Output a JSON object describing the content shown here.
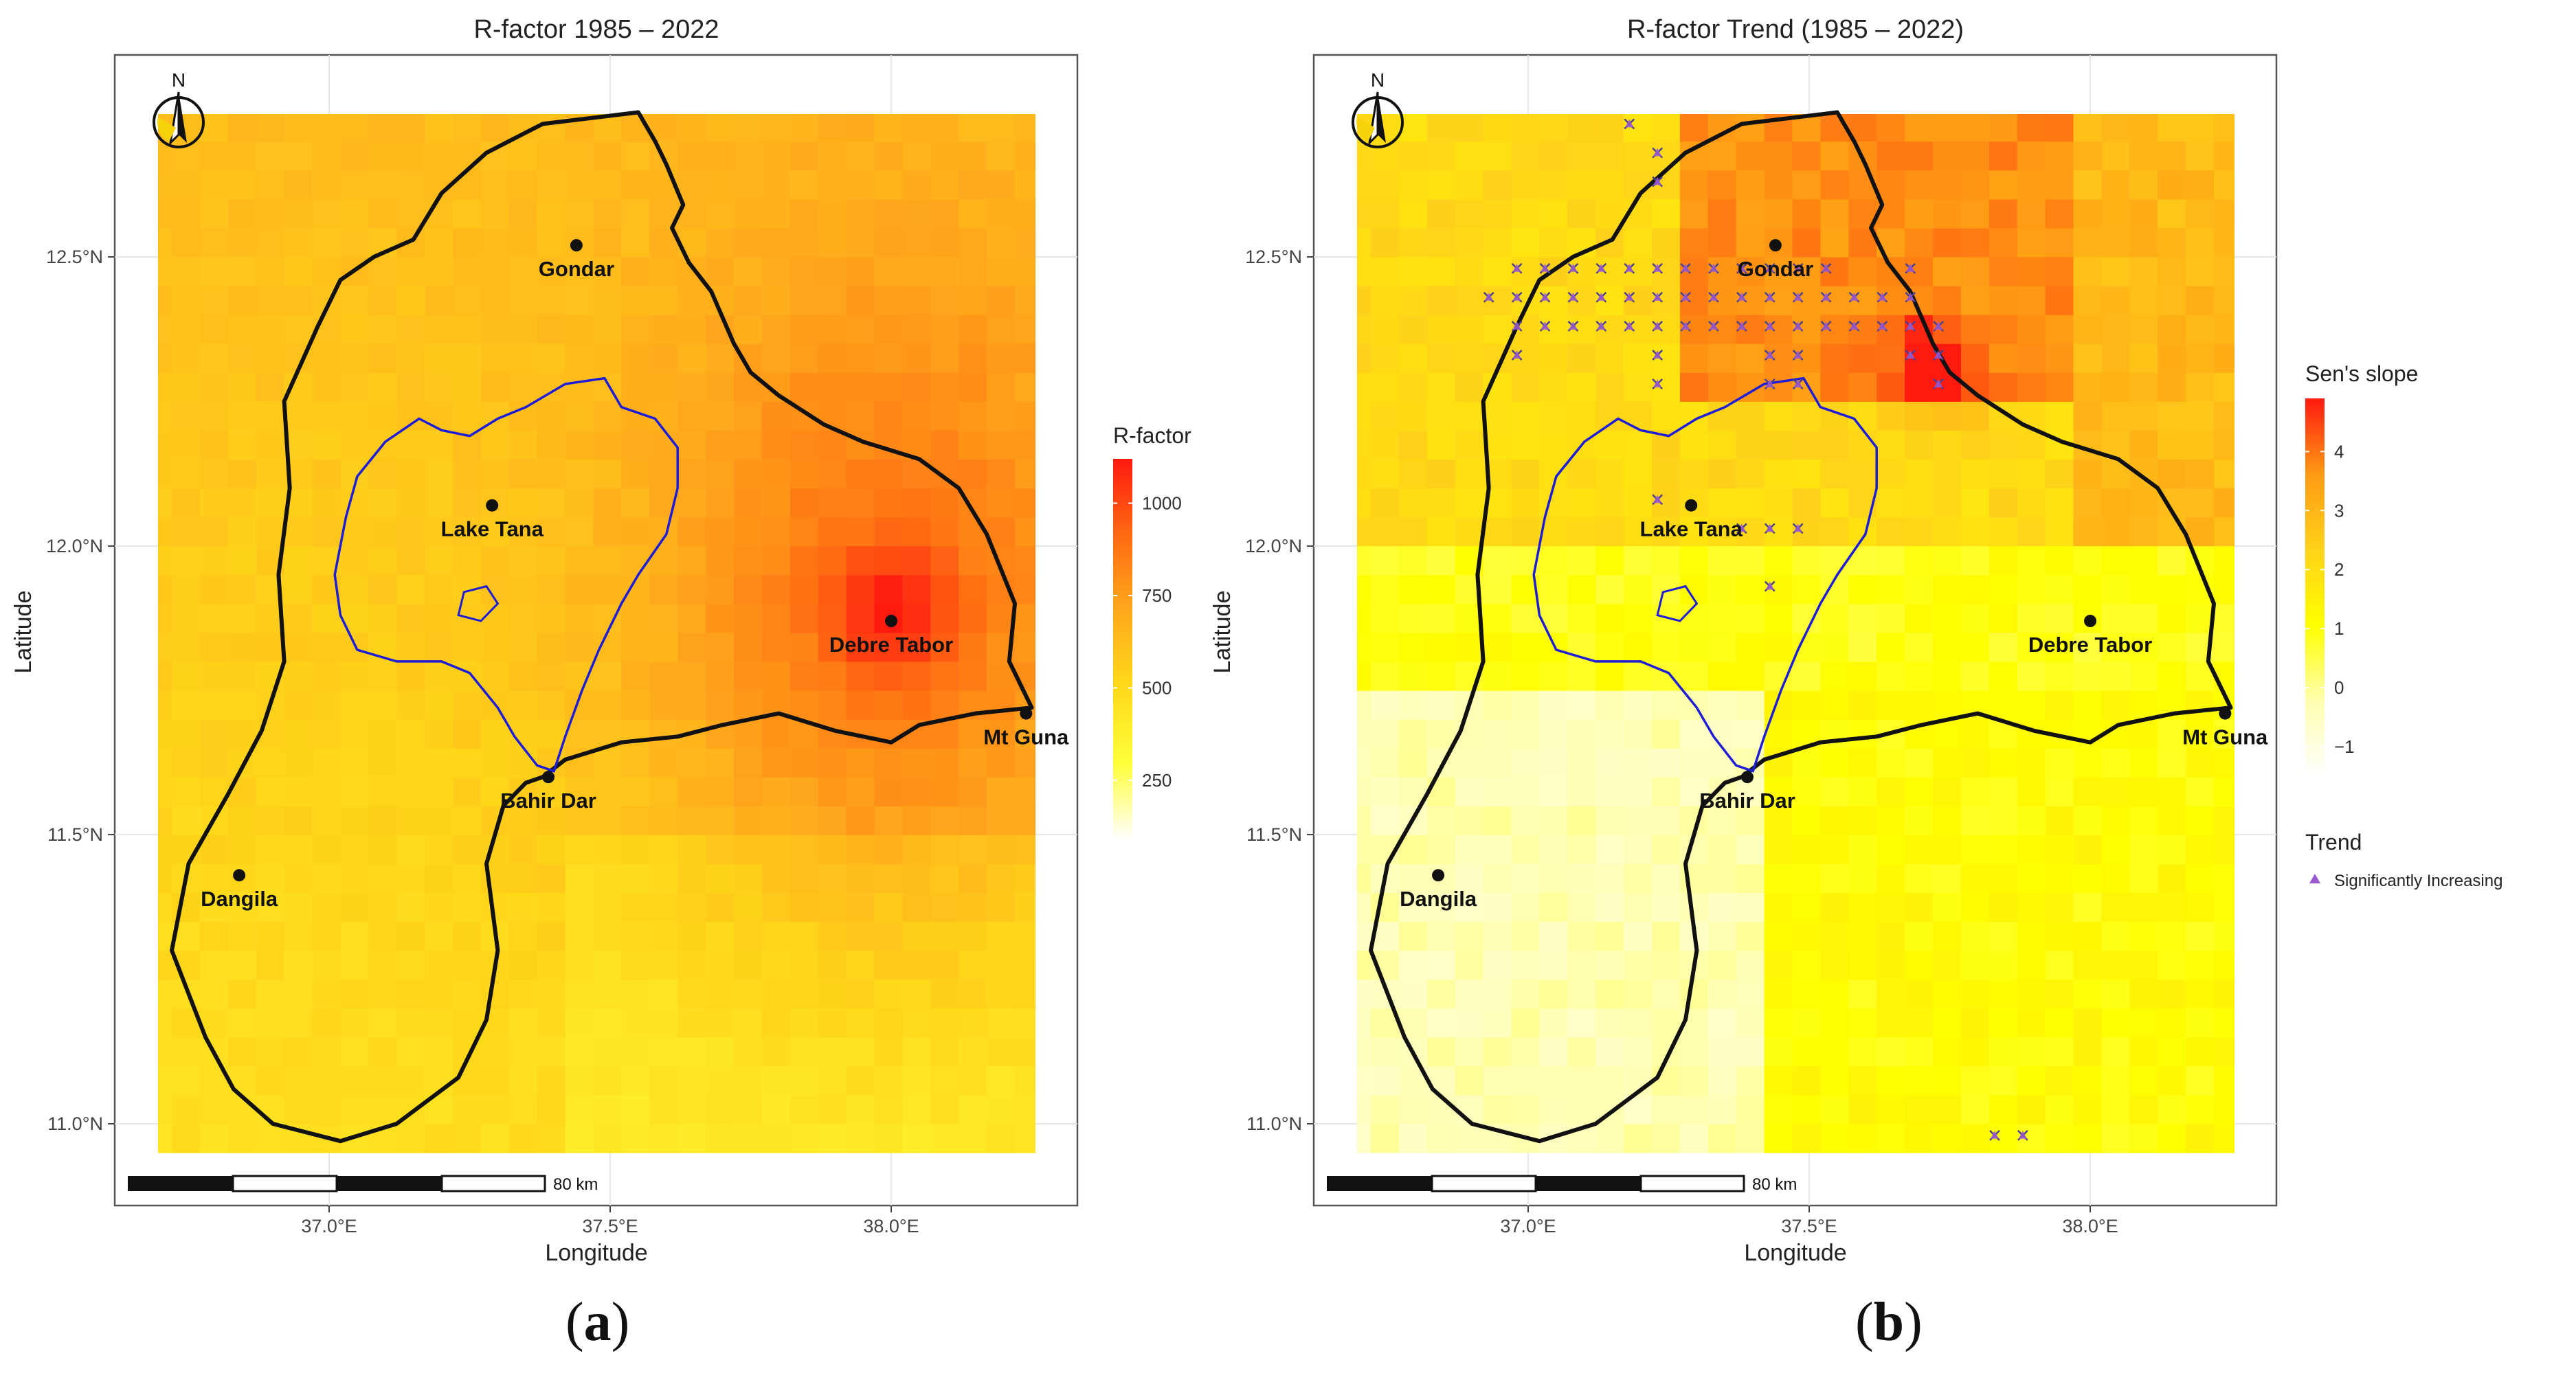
{
  "panels": [
    {
      "id": "a",
      "title": "R-factor 1985 – 2022",
      "panel_label": "a",
      "north_label": "N",
      "x_axis_title": "Longitude",
      "y_axis_title": "Latitude",
      "x_ticks": [
        "37.0°E",
        "37.5°E",
        "38.0°E"
      ],
      "y_ticks": [
        "11.0°N",
        "11.5°N",
        "12.0°N",
        "12.5°N"
      ],
      "scale_bar_label": "80 km",
      "places": [
        {
          "name": "Gondar",
          "lon": 37.44,
          "lat": 12.52
        },
        {
          "name": "Lake Tana",
          "lon": 37.29,
          "lat": 12.07
        },
        {
          "name": "Debre Tabor",
          "lon": 38.0,
          "lat": 11.87
        },
        {
          "name": "Mt Guna",
          "lon": 38.24,
          "lat": 11.71
        },
        {
          "name": "Bahir Dar",
          "lon": 37.39,
          "lat": 11.6
        },
        {
          "name": "Dangila",
          "lon": 36.84,
          "lat": 11.43
        }
      ],
      "legend": {
        "title": "R-factor",
        "ticks": [
          "250",
          "500",
          "750",
          "1000"
        ],
        "tick_values": [
          250,
          500,
          750,
          1000
        ],
        "range": [
          90,
          1120
        ],
        "colors": [
          "#ffffff",
          "#ffff3a",
          "#ffd91a",
          "#ffa91c",
          "#ff6a12",
          "#ff1a10"
        ]
      }
    },
    {
      "id": "b",
      "title": "R-factor Trend (1985 – 2022)",
      "panel_label": "b",
      "north_label": "N",
      "x_axis_title": "Longitude",
      "y_axis_title": "Latitude",
      "x_ticks": [
        "37.0°E",
        "37.5°E",
        "38.0°E"
      ],
      "y_ticks": [
        "11.0°N",
        "11.5°N",
        "12.0°N",
        "12.5°N"
      ],
      "scale_bar_label": "80 km",
      "places": [
        {
          "name": "Gondar",
          "lon": 37.44,
          "lat": 12.52
        },
        {
          "name": "Lake Tana",
          "lon": 37.29,
          "lat": 12.07
        },
        {
          "name": "Debre Tabor",
          "lon": 38.0,
          "lat": 11.87
        },
        {
          "name": "Mt Guna",
          "lon": 38.24,
          "lat": 11.71
        },
        {
          "name": "Bahir Dar",
          "lon": 37.39,
          "lat": 11.6
        },
        {
          "name": "Dangila",
          "lon": 36.84,
          "lat": 11.43
        }
      ],
      "legend": {
        "title": "Sen's slope",
        "ticks": [
          "−1",
          "0",
          "1",
          "2",
          "3",
          "4"
        ],
        "tick_values": [
          -1,
          0,
          1,
          2,
          3,
          4
        ],
        "range": [
          -1.5,
          4.9
        ],
        "colors": [
          "#ffffff",
          "#ffffb0",
          "#ffff00",
          "#ffd21a",
          "#ff9a14",
          "#ff1a10"
        ]
      },
      "trend_legend": {
        "title": "Trend",
        "item": "Significantly Increasing",
        "marker_color": "#9b59d0"
      }
    }
  ],
  "chart_data": {
    "type": "map",
    "lon_range": [
      36.67,
      38.25
    ],
    "lat_range": [
      10.95,
      12.75
    ],
    "basin_outline": [
      [
        37.55,
        12.75
      ],
      [
        37.58,
        12.7
      ],
      [
        37.6,
        12.66
      ],
      [
        37.63,
        12.59
      ],
      [
        37.61,
        12.55
      ],
      [
        37.64,
        12.49
      ],
      [
        37.68,
        12.44
      ],
      [
        37.72,
        12.35
      ],
      [
        37.75,
        12.3
      ],
      [
        37.8,
        12.26
      ],
      [
        37.88,
        12.21
      ],
      [
        37.95,
        12.18
      ],
      [
        38.05,
        12.15
      ],
      [
        38.12,
        12.1
      ],
      [
        38.17,
        12.02
      ],
      [
        38.22,
        11.9
      ],
      [
        38.21,
        11.8
      ],
      [
        38.25,
        11.72
      ],
      [
        38.15,
        11.71
      ],
      [
        38.05,
        11.69
      ],
      [
        38.0,
        11.66
      ],
      [
        37.9,
        11.68
      ],
      [
        37.8,
        11.71
      ],
      [
        37.7,
        11.69
      ],
      [
        37.62,
        11.67
      ],
      [
        37.52,
        11.66
      ],
      [
        37.42,
        11.63
      ],
      [
        37.38,
        11.6
      ],
      [
        37.35,
        11.59
      ],
      [
        37.31,
        11.55
      ],
      [
        37.28,
        11.45
      ],
      [
        37.3,
        11.3
      ],
      [
        37.28,
        11.18
      ],
      [
        37.23,
        11.08
      ],
      [
        37.12,
        11.0
      ],
      [
        37.02,
        10.97
      ],
      [
        36.9,
        11.0
      ],
      [
        36.83,
        11.06
      ],
      [
        36.78,
        11.15
      ],
      [
        36.72,
        11.3
      ],
      [
        36.75,
        11.45
      ],
      [
        36.82,
        11.57
      ],
      [
        36.88,
        11.68
      ],
      [
        36.92,
        11.8
      ],
      [
        36.91,
        11.95
      ],
      [
        36.93,
        12.1
      ],
      [
        36.92,
        12.25
      ],
      [
        36.98,
        12.38
      ],
      [
        37.02,
        12.46
      ],
      [
        37.08,
        12.5
      ],
      [
        37.15,
        12.53
      ],
      [
        37.2,
        12.61
      ],
      [
        37.28,
        12.68
      ],
      [
        37.38,
        12.73
      ],
      [
        37.55,
        12.75
      ]
    ],
    "lake_outline": [
      [
        37.49,
        12.29
      ],
      [
        37.52,
        12.24
      ],
      [
        37.58,
        12.22
      ],
      [
        37.62,
        12.17
      ],
      [
        37.62,
        12.1
      ],
      [
        37.6,
        12.02
      ],
      [
        37.55,
        11.95
      ],
      [
        37.52,
        11.9
      ],
      [
        37.48,
        11.82
      ],
      [
        37.45,
        11.75
      ],
      [
        37.42,
        11.67
      ],
      [
        37.4,
        11.61
      ],
      [
        37.37,
        11.62
      ],
      [
        37.33,
        11.67
      ],
      [
        37.3,
        11.72
      ],
      [
        37.25,
        11.78
      ],
      [
        37.2,
        11.8
      ],
      [
        37.12,
        11.8
      ],
      [
        37.05,
        11.82
      ],
      [
        37.02,
        11.88
      ],
      [
        37.01,
        11.95
      ],
      [
        37.03,
        12.05
      ],
      [
        37.05,
        12.12
      ],
      [
        37.1,
        12.18
      ],
      [
        37.16,
        12.22
      ],
      [
        37.2,
        12.2
      ],
      [
        37.25,
        12.19
      ],
      [
        37.3,
        12.22
      ],
      [
        37.35,
        12.24
      ],
      [
        37.42,
        12.28
      ],
      [
        37.49,
        12.29
      ]
    ],
    "island_outline": [
      [
        37.24,
        11.92
      ],
      [
        37.28,
        11.93
      ],
      [
        37.3,
        11.9
      ],
      [
        37.27,
        11.87
      ],
      [
        37.23,
        11.88
      ],
      [
        37.24,
        11.92
      ]
    ],
    "significant_cells": [
      [
        37.18,
        12.73
      ],
      [
        37.23,
        12.68
      ],
      [
        37.23,
        12.63
      ],
      [
        36.93,
        12.43
      ],
      [
        36.98,
        12.48
      ],
      [
        37.03,
        12.48
      ],
      [
        37.08,
        12.48
      ],
      [
        37.13,
        12.48
      ],
      [
        37.18,
        12.48
      ],
      [
        37.23,
        12.48
      ],
      [
        37.28,
        12.48
      ],
      [
        37.33,
        12.48
      ],
      [
        37.38,
        12.48
      ],
      [
        37.43,
        12.48
      ],
      [
        37.48,
        12.48
      ],
      [
        37.53,
        12.48
      ],
      [
        37.68,
        12.48
      ],
      [
        36.98,
        12.43
      ],
      [
        37.03,
        12.43
      ],
      [
        37.08,
        12.43
      ],
      [
        37.13,
        12.43
      ],
      [
        37.18,
        12.43
      ],
      [
        37.23,
        12.43
      ],
      [
        37.28,
        12.43
      ],
      [
        37.33,
        12.43
      ],
      [
        37.38,
        12.43
      ],
      [
        37.43,
        12.43
      ],
      [
        37.48,
        12.43
      ],
      [
        37.53,
        12.43
      ],
      [
        37.58,
        12.43
      ],
      [
        37.63,
        12.43
      ],
      [
        37.68,
        12.43
      ],
      [
        36.98,
        12.38
      ],
      [
        37.03,
        12.38
      ],
      [
        37.08,
        12.38
      ],
      [
        37.13,
        12.38
      ],
      [
        37.18,
        12.38
      ],
      [
        37.23,
        12.38
      ],
      [
        37.28,
        12.38
      ],
      [
        37.33,
        12.38
      ],
      [
        37.38,
        12.38
      ],
      [
        37.43,
        12.38
      ],
      [
        37.48,
        12.38
      ],
      [
        37.53,
        12.38
      ],
      [
        37.58,
        12.38
      ],
      [
        37.63,
        12.38
      ],
      [
        37.68,
        12.38
      ],
      [
        37.73,
        12.38
      ],
      [
        36.98,
        12.33
      ],
      [
        37.23,
        12.33
      ],
      [
        37.43,
        12.33
      ],
      [
        37.48,
        12.33
      ],
      [
        37.68,
        12.33
      ],
      [
        37.73,
        12.33
      ],
      [
        37.23,
        12.28
      ],
      [
        37.43,
        12.28
      ],
      [
        37.48,
        12.28
      ],
      [
        37.73,
        12.28
      ],
      [
        37.23,
        12.08
      ],
      [
        37.38,
        12.03
      ],
      [
        37.43,
        12.03
      ],
      [
        37.48,
        12.03
      ],
      [
        37.43,
        11.93
      ],
      [
        37.83,
        10.98
      ],
      [
        37.88,
        10.98
      ]
    ],
    "rfactor_hotspot": {
      "lon": 38.0,
      "lat": 11.88,
      "peak": 1100
    }
  }
}
